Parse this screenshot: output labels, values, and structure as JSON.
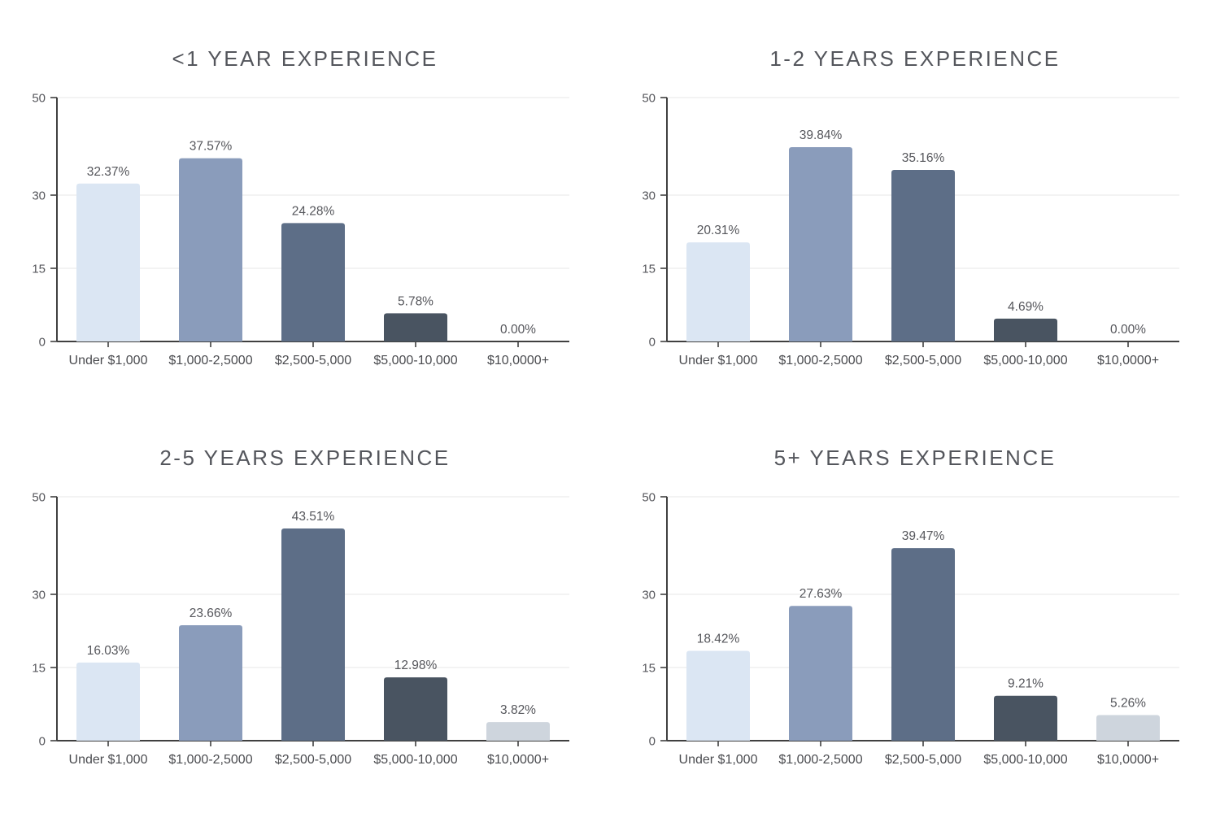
{
  "page": {
    "background": "#ffffff"
  },
  "palette": {
    "bar_colors": [
      "#dbe6f3",
      "#8a9cbb",
      "#5d6e87",
      "#495461",
      "#ced5dd"
    ],
    "gridline_color": "#efefef",
    "axis_color": "#404040",
    "title_color": "#54565c",
    "value_label_color": "#55565b",
    "tick_label_color": "#55565b",
    "category_label_color": "#4a4b4f"
  },
  "chart_data": [
    {
      "type": "bar",
      "title": "<1 YEAR EXPERIENCE",
      "categories": [
        "Under $1,000",
        "$1,000-2,5000",
        "$2,500-5,000",
        "$5,000-10,000",
        "$10,0000+"
      ],
      "values": [
        32.37,
        37.57,
        24.28,
        5.78,
        0.0
      ],
      "value_labels": [
        "32.37%",
        "37.57%",
        "24.28%",
        "5.78%",
        "0.00%"
      ],
      "xlabel": "",
      "ylabel": "",
      "ylim": [
        0,
        50
      ],
      "yticks": [
        0,
        15,
        30,
        50
      ],
      "grid": true,
      "legend": "none"
    },
    {
      "type": "bar",
      "title": "1-2 YEARS EXPERIENCE",
      "categories": [
        "Under $1,000",
        "$1,000-2,5000",
        "$2,500-5,000",
        "$5,000-10,000",
        "$10,0000+"
      ],
      "values": [
        20.31,
        39.84,
        35.16,
        4.69,
        0.0
      ],
      "value_labels": [
        "20.31%",
        "39.84%",
        "35.16%",
        "4.69%",
        "0.00%"
      ],
      "xlabel": "",
      "ylabel": "",
      "ylim": [
        0,
        50
      ],
      "yticks": [
        0,
        15,
        30,
        50
      ],
      "grid": true,
      "legend": "none"
    },
    {
      "type": "bar",
      "title": "2-5 YEARS EXPERIENCE",
      "categories": [
        "Under $1,000",
        "$1,000-2,5000",
        "$2,500-5,000",
        "$5,000-10,000",
        "$10,0000+"
      ],
      "values": [
        16.03,
        23.66,
        43.51,
        12.98,
        3.82
      ],
      "value_labels": [
        "16.03%",
        "23.66%",
        "43.51%",
        "12.98%",
        "3.82%"
      ],
      "xlabel": "",
      "ylabel": "",
      "ylim": [
        0,
        50
      ],
      "yticks": [
        0,
        15,
        30,
        50
      ],
      "grid": true,
      "legend": "none"
    },
    {
      "type": "bar",
      "title": "5+ YEARS EXPERIENCE",
      "categories": [
        "Under $1,000",
        "$1,000-2,5000",
        "$2,500-5,000",
        "$5,000-10,000",
        "$10,0000+"
      ],
      "values": [
        18.42,
        27.63,
        39.47,
        9.21,
        5.26
      ],
      "value_labels": [
        "18.42%",
        "27.63%",
        "39.47%",
        "9.21%",
        "5.26%"
      ],
      "xlabel": "",
      "ylabel": "",
      "ylim": [
        0,
        50
      ],
      "yticks": [
        0,
        15,
        30,
        50
      ],
      "grid": true,
      "legend": "none"
    }
  ]
}
